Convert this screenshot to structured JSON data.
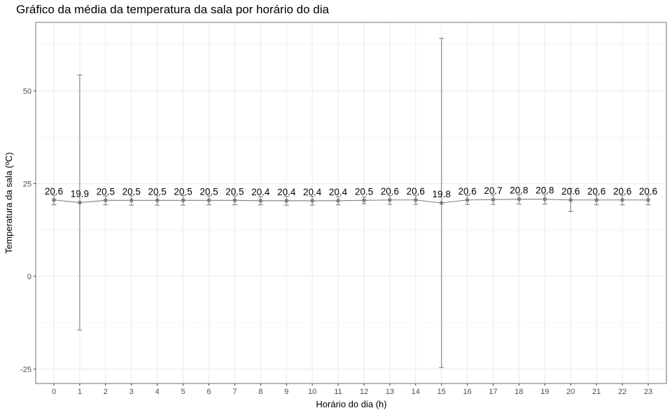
{
  "chart_data": {
    "type": "line",
    "title": "Gráfico da média da temperatura da sala por horário do dia",
    "xlabel": "Horário do dia (h)",
    "ylabel": "Temperatura da sala (ºC)",
    "categories": [
      "0",
      "1",
      "2",
      "3",
      "4",
      "5",
      "6",
      "7",
      "8",
      "9",
      "10",
      "11",
      "12",
      "13",
      "14",
      "15",
      "16",
      "17",
      "18",
      "19",
      "20",
      "21",
      "22",
      "23"
    ],
    "series": [
      {
        "values": [
          20.6,
          19.9,
          20.5,
          20.5,
          20.5,
          20.5,
          20.5,
          20.5,
          20.4,
          20.4,
          20.4,
          20.4,
          20.5,
          20.6,
          20.6,
          19.8,
          20.6,
          20.7,
          20.8,
          20.8,
          20.6,
          20.6,
          20.6,
          20.6
        ],
        "labels": [
          "20.6",
          "19.9",
          "20.5",
          "20.5",
          "20.5",
          "20.5",
          "20.5",
          "20.5",
          "20.4",
          "20.4",
          "20.4",
          "20.4",
          "20.5",
          "20.6",
          "20.6",
          "19.8",
          "20.6",
          "20.7",
          "20.8",
          "20.8",
          "20.6",
          "20.6",
          "20.6",
          "20.6"
        ],
        "error_low": [
          19.3,
          -14.5,
          19.3,
          19.2,
          19.2,
          19.2,
          19.3,
          19.3,
          19.3,
          19.2,
          19.2,
          19.3,
          19.6,
          19.4,
          19.4,
          -24.6,
          19.4,
          19.4,
          19.5,
          19.5,
          17.5,
          19.3,
          19.3,
          19.3
        ],
        "error_high": [
          21.9,
          54.3,
          21.7,
          21.8,
          21.8,
          21.8,
          21.7,
          21.7,
          21.5,
          21.6,
          21.6,
          21.5,
          21.4,
          21.8,
          21.8,
          64.2,
          21.8,
          22.0,
          22.1,
          22.1,
          23.7,
          21.9,
          21.9,
          21.9
        ]
      }
    ],
    "yticks": [
      -25,
      0,
      25,
      50
    ],
    "ylim": [
      -28.9,
      68.5
    ],
    "grid": true,
    "line_color": "#7f7f7f",
    "point_color": "#7f7f7f",
    "gridline_color": "#ebebeb",
    "border_color": "#7f7f7f"
  }
}
